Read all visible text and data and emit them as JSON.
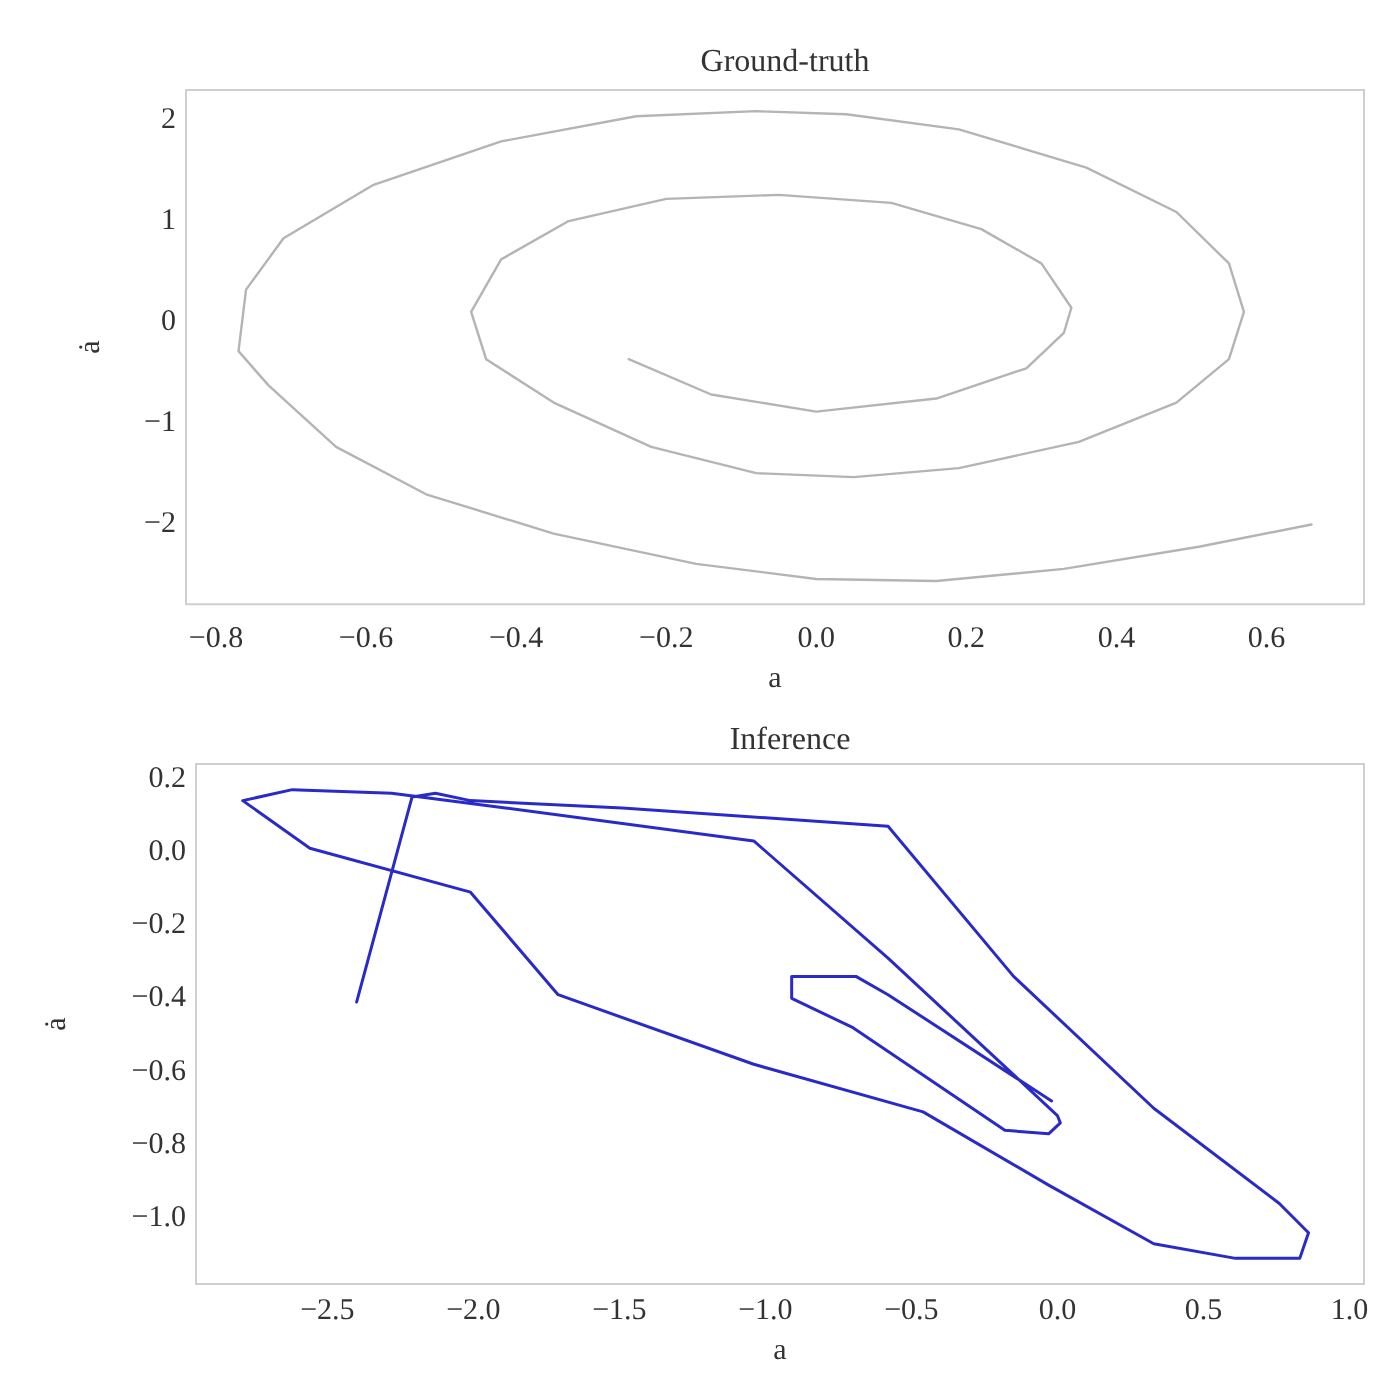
{
  "chart_data": [
    {
      "type": "line",
      "title": "Ground-truth",
      "xlabel": "a",
      "ylabel": "ȧ",
      "series": [
        {
          "color": "#b4b4b4",
          "x": [
            -0.25,
            -0.14,
            0.0,
            0.16,
            0.28,
            0.33,
            0.34,
            0.3,
            0.22,
            0.1,
            -0.05,
            -0.2,
            -0.33,
            -0.42,
            -0.46,
            -0.44,
            -0.35,
            -0.22,
            -0.08,
            0.05,
            0.19,
            0.35,
            0.48,
            0.55,
            0.57,
            0.55,
            0.48,
            0.36,
            0.19,
            0.04,
            -0.08,
            -0.24,
            -0.42,
            -0.59,
            -0.71,
            -0.76,
            -0.77,
            -0.73,
            -0.64,
            -0.52,
            -0.35,
            -0.16,
            0.0,
            0.16,
            0.33,
            0.51,
            0.66
          ],
          "values": [
            -0.37,
            -0.72,
            -0.89,
            -0.76,
            -0.46,
            -0.11,
            0.14,
            0.58,
            0.92,
            1.18,
            1.26,
            1.22,
            1.0,
            0.62,
            0.1,
            -0.37,
            -0.8,
            -1.24,
            -1.5,
            -1.54,
            -1.45,
            -1.19,
            -0.8,
            -0.37,
            0.1,
            0.58,
            1.09,
            1.53,
            1.91,
            2.06,
            2.09,
            2.04,
            1.79,
            1.36,
            0.83,
            0.32,
            -0.29,
            -0.63,
            -1.24,
            -1.71,
            -2.1,
            -2.4,
            -2.55,
            -2.57,
            -2.45,
            -2.23,
            -2.01
          ]
        }
      ],
      "xlim": [
        -0.84,
        0.73
      ],
      "ylim": [
        -2.8,
        2.3
      ],
      "xticks": [
        -0.8,
        -0.6,
        -0.4,
        -0.2,
        {
          "value": 0,
          "label": "0.0"
        },
        0.2,
        0.4,
        0.6
      ],
      "yticks": [
        2,
        1,
        0,
        -1,
        -2
      ]
    },
    {
      "type": "line",
      "title": "Inference",
      "xlabel": "a",
      "ylabel": "ȧ",
      "series": [
        {
          "color": "#2a2ac8",
          "x": [
            -2.4,
            -2.21,
            -2.13,
            -2.01,
            -1.49,
            -0.58,
            -0.15,
            0.33,
            0.76,
            0.86,
            0.83,
            0.61,
            0.33,
            -0.03,
            -0.46,
            -1.04,
            -1.71,
            -2.01,
            -2.56,
            -2.79,
            -2.62,
            -2.28,
            -1.89,
            -1.04,
            -0.58,
            0.0,
            0.01,
            -0.03,
            -0.18,
            -0.7,
            -0.91,
            -0.91,
            -0.69,
            -0.58,
            -0.02
          ],
          "values": [
            -0.41,
            0.15,
            0.16,
            0.14,
            0.12,
            0.07,
            -0.34,
            -0.7,
            -0.96,
            -1.04,
            -1.11,
            -1.11,
            -1.07,
            -0.91,
            -0.71,
            -0.58,
            -0.39,
            -0.11,
            0.01,
            0.14,
            0.17,
            0.16,
            0.12,
            0.03,
            -0.29,
            -0.72,
            -0.74,
            -0.77,
            -0.76,
            -0.48,
            -0.4,
            -0.34,
            -0.34,
            -0.39,
            -0.68
          ]
        }
      ],
      "xlim": [
        -2.95,
        1.05
      ],
      "ylim": [
        -1.18,
        0.24
      ],
      "xticks": [
        -2.5,
        {
          "value": -2,
          "label": "−2.0"
        },
        -1.5,
        {
          "value": -1,
          "label": "−1.0"
        },
        -0.5,
        {
          "value": 0,
          "label": "0.0"
        },
        0.5,
        {
          "value": 1,
          "label": "1.0"
        }
      ],
      "yticks": [
        0.2,
        {
          "value": 0,
          "label": "0.0"
        },
        -0.2,
        -0.4,
        -0.6,
        -0.8,
        {
          "value": -1,
          "label": "−1.0"
        }
      ]
    }
  ]
}
